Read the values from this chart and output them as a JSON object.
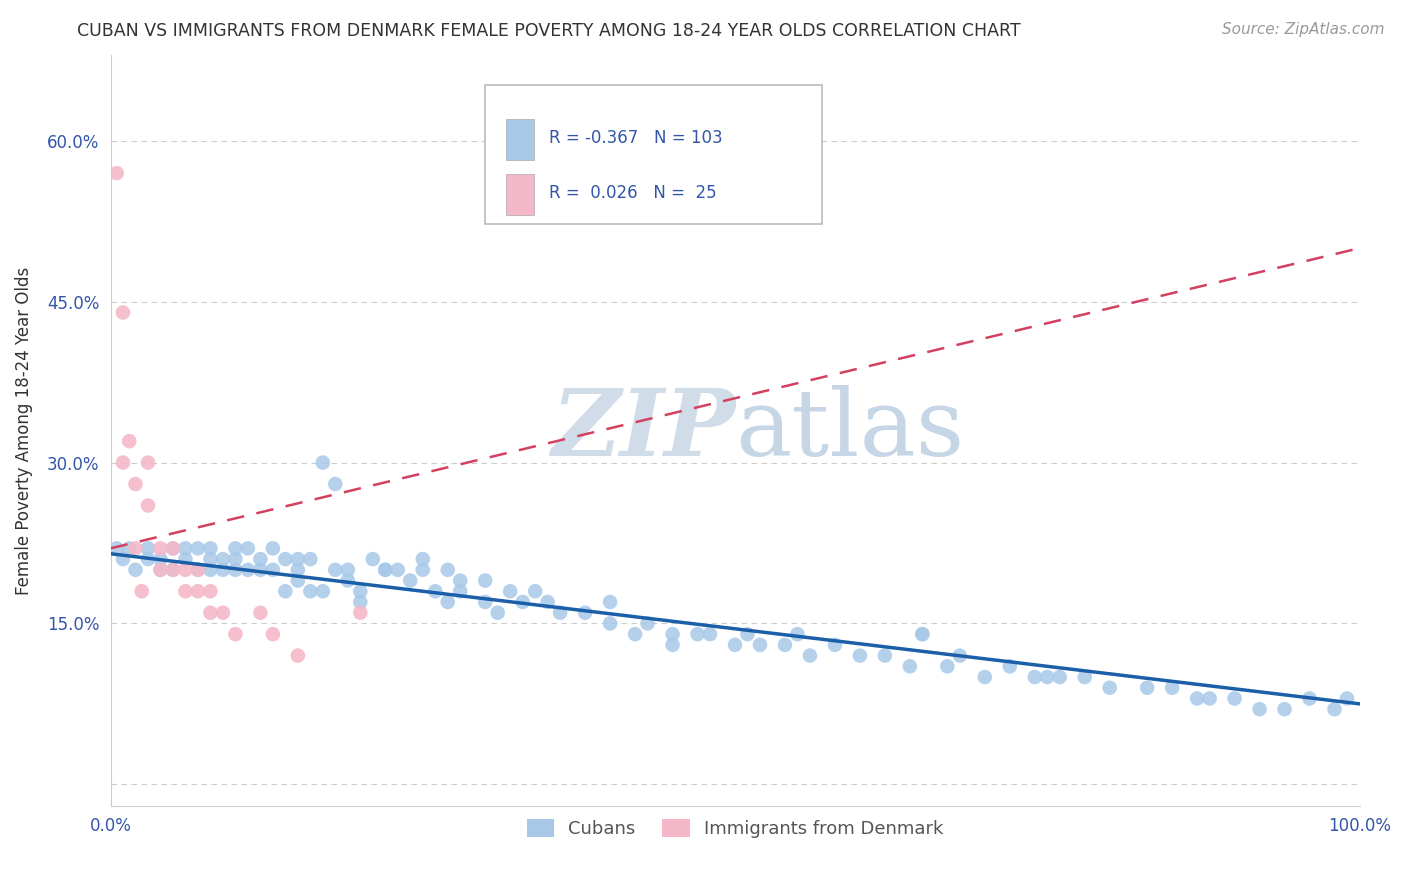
{
  "title": "CUBAN VS IMMIGRANTS FROM DENMARK FEMALE POVERTY AMONG 18-24 YEAR OLDS CORRELATION CHART",
  "source": "Source: ZipAtlas.com",
  "ylabel": "Female Poverty Among 18-24 Year Olds",
  "xlim": [
    0.0,
    1.0
  ],
  "ylim": [
    -0.02,
    0.68
  ],
  "xtick_vals": [
    0.0,
    0.1,
    0.2,
    0.3,
    0.4,
    0.5,
    0.6,
    0.7,
    0.8,
    0.9,
    1.0
  ],
  "xtick_labels": [
    "0.0%",
    "",
    "",
    "",
    "",
    "",
    "",
    "",
    "",
    "",
    "100.0%"
  ],
  "ytick_vals": [
    0.0,
    0.15,
    0.3,
    0.45,
    0.6
  ],
  "ytick_labels": [
    "",
    "15.0%",
    "30.0%",
    "45.0%",
    "60.0%"
  ],
  "cubans_R": "-0.367",
  "cubans_N": "103",
  "denmark_R": "0.026",
  "denmark_N": "25",
  "legend_label1": "Cubans",
  "legend_label2": "Immigrants from Denmark",
  "blue_dot_color": "#a8c8e8",
  "pink_dot_color": "#f4b8c8",
  "blue_line_color": "#1a5fa8",
  "pink_line_color": "#d44060",
  "watermark_color": "#d0dde8",
  "background_color": "#ffffff",
  "grid_color": "#cccccc",
  "text_color": "#333333",
  "axis_label_color": "#3355aa",
  "source_color": "#999999",
  "cubans_x": [
    0.005,
    0.01,
    0.015,
    0.02,
    0.03,
    0.03,
    0.04,
    0.04,
    0.05,
    0.05,
    0.06,
    0.06,
    0.07,
    0.07,
    0.08,
    0.08,
    0.08,
    0.09,
    0.09,
    0.1,
    0.1,
    0.1,
    0.11,
    0.11,
    0.12,
    0.12,
    0.13,
    0.13,
    0.14,
    0.14,
    0.15,
    0.15,
    0.15,
    0.16,
    0.16,
    0.17,
    0.17,
    0.18,
    0.18,
    0.19,
    0.19,
    0.2,
    0.2,
    0.21,
    0.22,
    0.22,
    0.23,
    0.24,
    0.25,
    0.25,
    0.26,
    0.27,
    0.27,
    0.28,
    0.28,
    0.3,
    0.3,
    0.31,
    0.32,
    0.33,
    0.34,
    0.35,
    0.36,
    0.38,
    0.4,
    0.4,
    0.42,
    0.43,
    0.45,
    0.45,
    0.47,
    0.48,
    0.5,
    0.51,
    0.52,
    0.54,
    0.55,
    0.56,
    0.58,
    0.6,
    0.62,
    0.64,
    0.65,
    0.67,
    0.68,
    0.7,
    0.72,
    0.74,
    0.76,
    0.78,
    0.8,
    0.83,
    0.85,
    0.87,
    0.88,
    0.9,
    0.92,
    0.94,
    0.96,
    0.98,
    0.99,
    0.65,
    0.75
  ],
  "cubans_y": [
    0.22,
    0.21,
    0.22,
    0.2,
    0.21,
    0.22,
    0.2,
    0.21,
    0.22,
    0.2,
    0.22,
    0.21,
    0.2,
    0.22,
    0.21,
    0.2,
    0.22,
    0.2,
    0.21,
    0.22,
    0.2,
    0.21,
    0.2,
    0.22,
    0.21,
    0.2,
    0.22,
    0.2,
    0.21,
    0.18,
    0.2,
    0.19,
    0.21,
    0.18,
    0.21,
    0.18,
    0.3,
    0.28,
    0.2,
    0.19,
    0.2,
    0.18,
    0.17,
    0.21,
    0.2,
    0.2,
    0.2,
    0.19,
    0.2,
    0.21,
    0.18,
    0.17,
    0.2,
    0.19,
    0.18,
    0.17,
    0.19,
    0.16,
    0.18,
    0.17,
    0.18,
    0.17,
    0.16,
    0.16,
    0.17,
    0.15,
    0.14,
    0.15,
    0.14,
    0.13,
    0.14,
    0.14,
    0.13,
    0.14,
    0.13,
    0.13,
    0.14,
    0.12,
    0.13,
    0.12,
    0.12,
    0.11,
    0.14,
    0.11,
    0.12,
    0.1,
    0.11,
    0.1,
    0.1,
    0.1,
    0.09,
    0.09,
    0.09,
    0.08,
    0.08,
    0.08,
    0.07,
    0.07,
    0.08,
    0.07,
    0.08,
    0.14,
    0.1
  ],
  "denmark_x": [
    0.005,
    0.01,
    0.01,
    0.015,
    0.02,
    0.02,
    0.025,
    0.03,
    0.03,
    0.04,
    0.04,
    0.05,
    0.05,
    0.06,
    0.06,
    0.07,
    0.07,
    0.08,
    0.08,
    0.09,
    0.1,
    0.12,
    0.13,
    0.15,
    0.2
  ],
  "denmark_y": [
    0.57,
    0.44,
    0.3,
    0.32,
    0.28,
    0.22,
    0.18,
    0.26,
    0.3,
    0.2,
    0.22,
    0.2,
    0.22,
    0.18,
    0.2,
    0.18,
    0.2,
    0.16,
    0.18,
    0.16,
    0.14,
    0.16,
    0.14,
    0.12,
    0.16
  ],
  "blue_trend_x0": 0.0,
  "blue_trend_y0": 0.215,
  "blue_trend_x1": 1.0,
  "blue_trend_y1": 0.075,
  "pink_trend_x0": 0.0,
  "pink_trend_y0": 0.22,
  "pink_trend_x1": 1.0,
  "pink_trend_y1": 0.5
}
